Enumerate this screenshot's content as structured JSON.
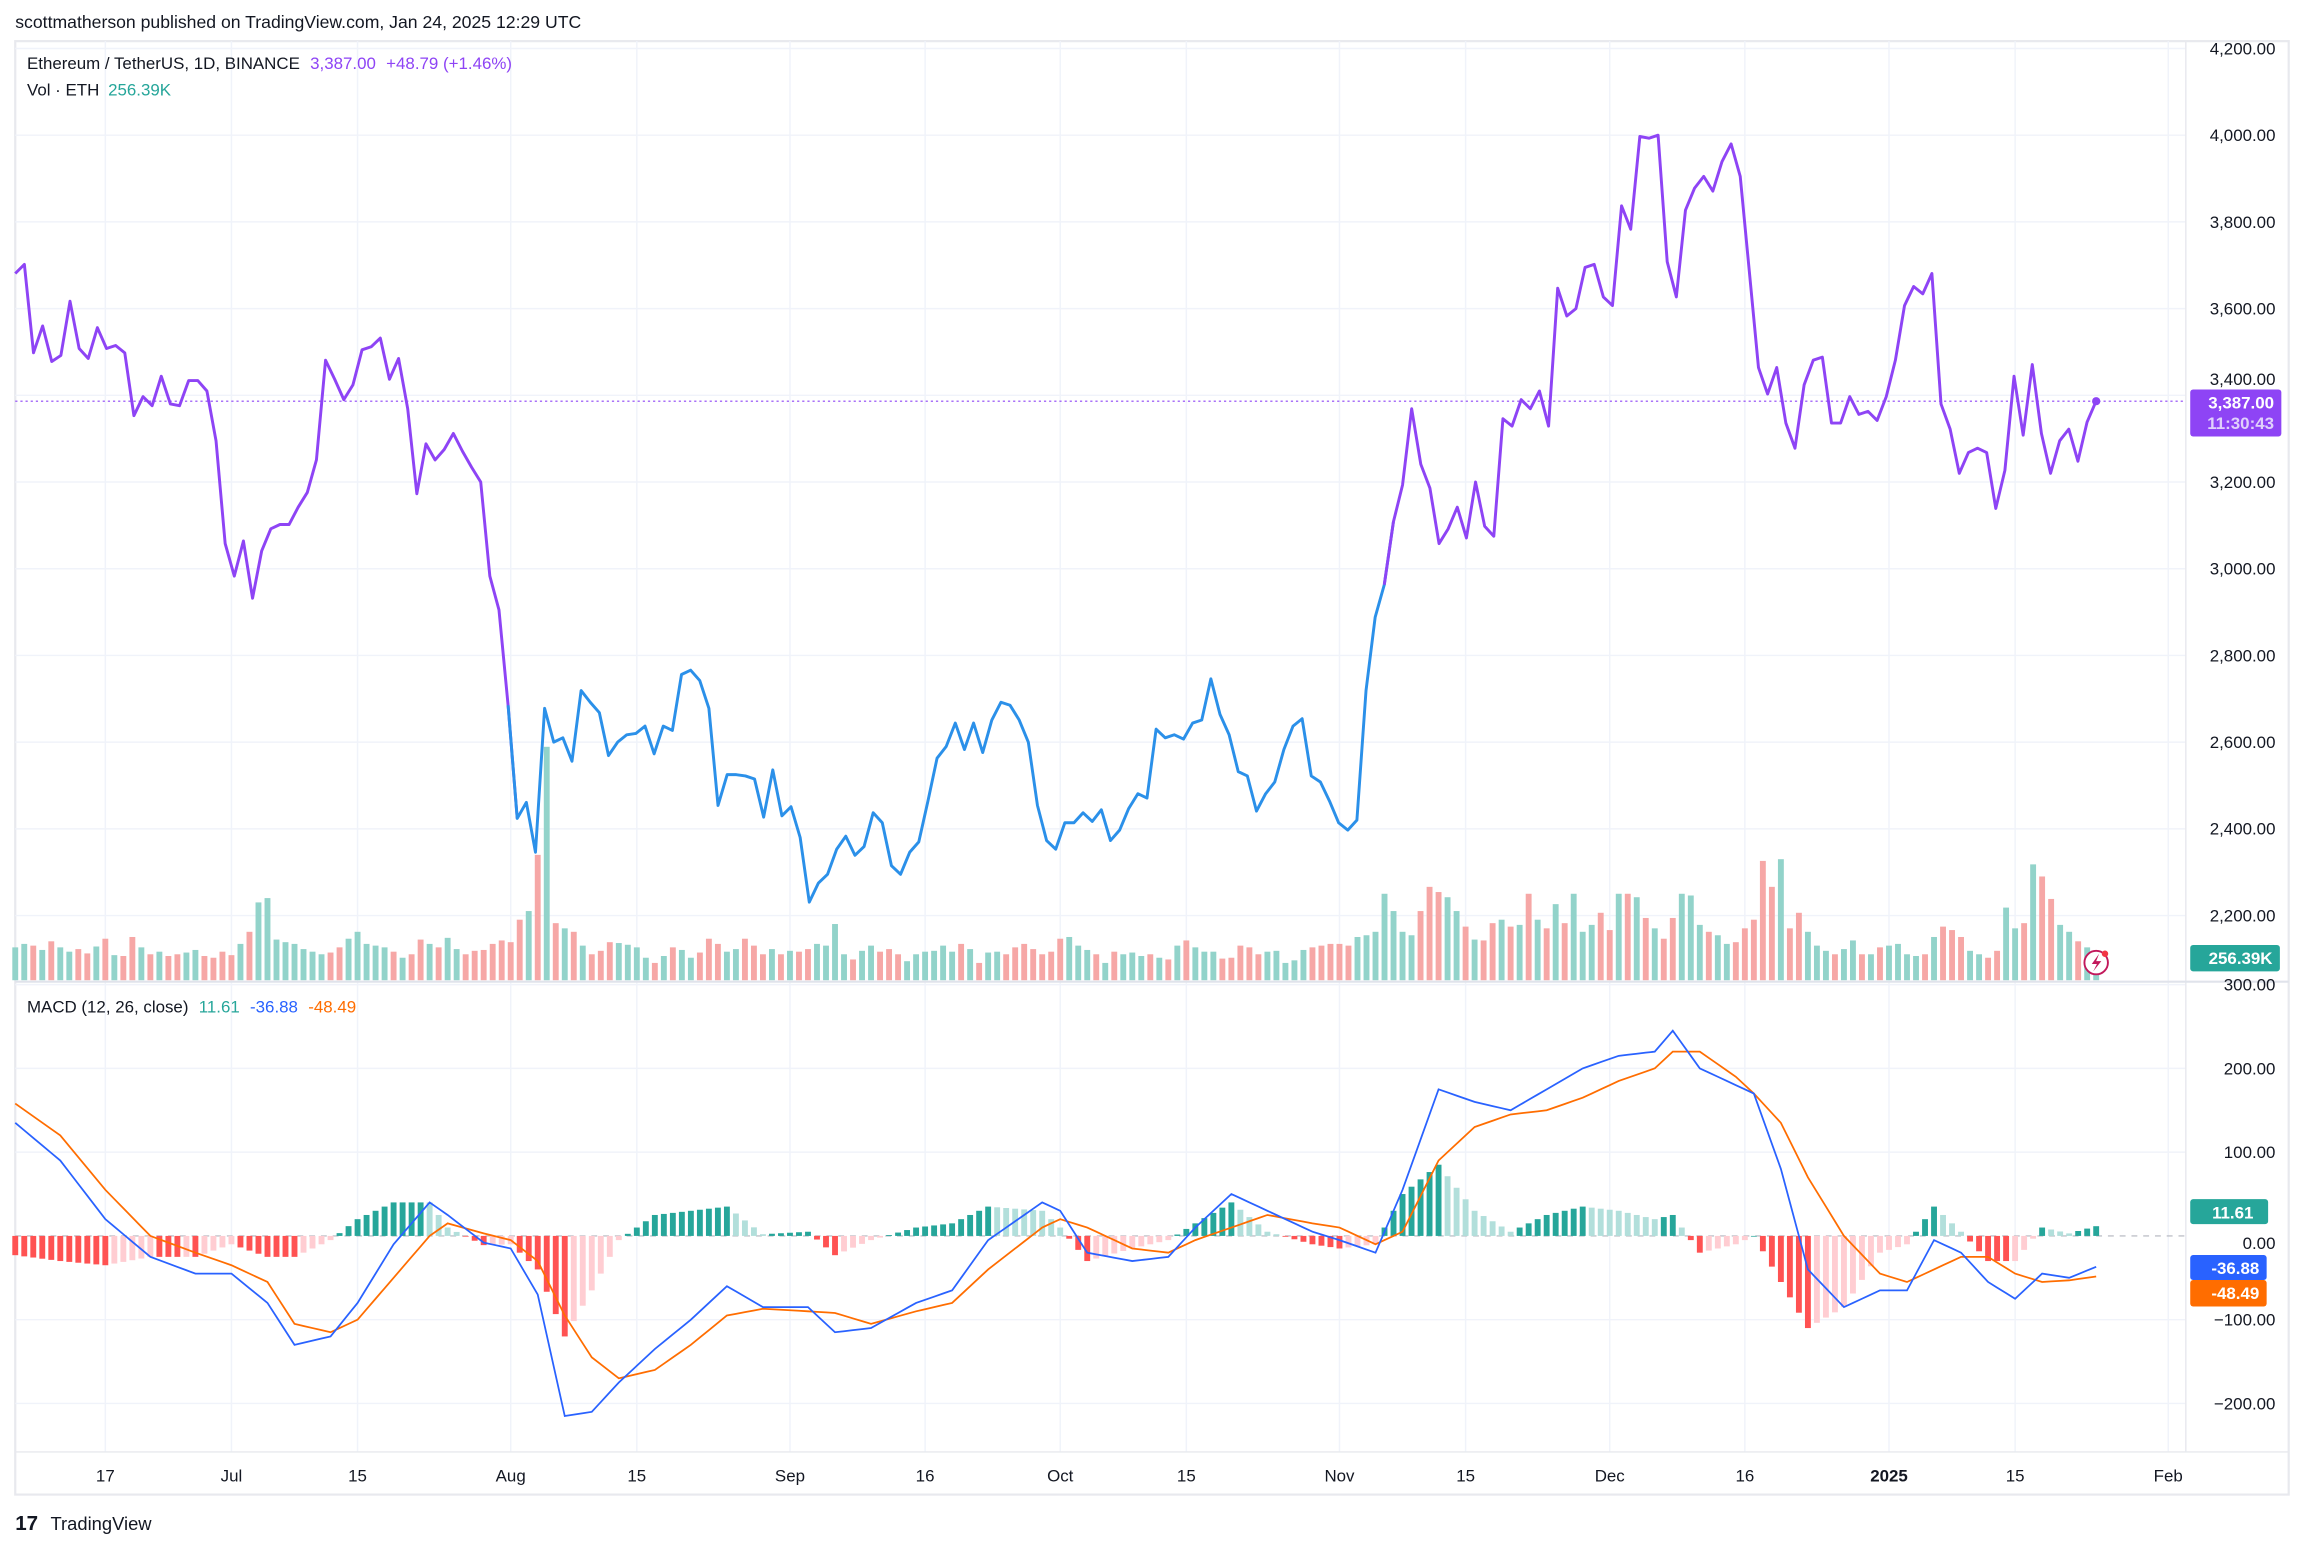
{
  "header": {
    "published": "scottmatherson published on TradingView.com, Jan 24, 2025 12:29 UTC"
  },
  "legend": {
    "symbol": "Ethereum / TetherUS, 1D, BINANCE",
    "price": "3,387.00",
    "change": "+48.79 (+1.46%)",
    "vol_label": "Vol · ETH",
    "vol_value": "256.39K"
  },
  "macd_legend": {
    "title": "MACD (12, 26, close)",
    "hist": "11.61",
    "macd": "-36.88",
    "signal": "-48.49"
  },
  "price_label": {
    "price": "3,387.00",
    "countdown": "11:30:43"
  },
  "volume_label": "256.39K",
  "macd_labels": {
    "hist": "11.61",
    "macd": "-36.88",
    "signal": "-48.49"
  },
  "footer": {
    "logo_text": "TradingView"
  },
  "colors": {
    "price_up_segment": "#8e44f5",
    "price_down_segment": "#2b90e9",
    "volume_up": "#92d3ca",
    "volume_down": "#f6a7a6",
    "macd_line": "#2962ff",
    "signal_line": "#ff6d00",
    "hist_pos_strong": "#26a69a",
    "hist_pos_weak": "#b2dfdb",
    "hist_neg_strong": "#ff5252",
    "hist_neg_weak": "#ffcdd2"
  },
  "chart_data": {
    "type": "line",
    "x_range": [
      "2024-06-07",
      "2025-01-24"
    ],
    "x_ticks": [
      {
        "label": "17",
        "date": "2024-06-17"
      },
      {
        "label": "Jul",
        "date": "2024-07-01"
      },
      {
        "label": "15",
        "date": "2024-07-15"
      },
      {
        "label": "Aug",
        "date": "2024-08-01"
      },
      {
        "label": "15",
        "date": "2024-08-15"
      },
      {
        "label": "Sep",
        "date": "2024-09-01"
      },
      {
        "label": "16",
        "date": "2024-09-16"
      },
      {
        "label": "Oct",
        "date": "2024-10-01"
      },
      {
        "label": "15",
        "date": "2024-10-15"
      },
      {
        "label": "Nov",
        "date": "2024-11-01"
      },
      {
        "label": "15",
        "date": "2024-11-15"
      },
      {
        "label": "Dec",
        "date": "2024-12-01"
      },
      {
        "label": "16",
        "date": "2024-12-16"
      },
      {
        "label": "2025",
        "date": "2025-01-01"
      },
      {
        "label": "15",
        "date": "2025-01-15"
      },
      {
        "label": "Feb",
        "date": "2025-02-01"
      }
    ],
    "price": {
      "y_ticks": [
        {
          "value": 4200,
          "label": "4,200.00"
        },
        {
          "value": 4000,
          "label": "4,000.00"
        },
        {
          "value": 3800,
          "label": "3,800.00"
        },
        {
          "value": 3600,
          "label": "3,600.00"
        },
        {
          "value": 3400,
          "label": "3,400.00"
        },
        {
          "value": 3200,
          "label": "3,200.00"
        },
        {
          "value": 3000,
          "label": "3,000.00"
        },
        {
          "value": 2800,
          "label": "2,800.00"
        },
        {
          "value": 2600,
          "label": "2,600.00"
        },
        {
          "value": 2400,
          "label": "2,400.00"
        },
        {
          "value": 2200,
          "label": "2,200.00"
        }
      ],
      "last": 3387,
      "color_breaks": [
        {
          "from": "2024-06-07",
          "color": "#8e44f5"
        },
        {
          "from": "2024-08-01",
          "color": "#2b90e9"
        },
        {
          "from": "2024-11-06",
          "color": "#8e44f5"
        }
      ],
      "closes": [
        3681,
        3702,
        3498,
        3560,
        3478,
        3492,
        3617,
        3508,
        3485,
        3556,
        3508,
        3515,
        3498,
        3353,
        3397,
        3376,
        3444,
        3380,
        3376,
        3434,
        3434,
        3410,
        3295,
        3058,
        2983,
        3064,
        2932,
        3041,
        3092,
        3102,
        3102,
        3142,
        3176,
        3251,
        3481,
        3437,
        3390,
        3424,
        3505,
        3512,
        3532,
        3437,
        3485,
        3369,
        3173,
        3288,
        3251,
        3275,
        3312,
        3271,
        3234,
        3200,
        2983,
        2905,
        2685,
        2424,
        2461,
        2346,
        2678,
        2600,
        2610,
        2556,
        2719,
        2692,
        2668,
        2569,
        2600,
        2617,
        2620,
        2637,
        2573,
        2637,
        2627,
        2756,
        2766,
        2742,
        2678,
        2454,
        2525,
        2525,
        2522,
        2515,
        2427,
        2536,
        2430,
        2451,
        2380,
        2231,
        2275,
        2295,
        2353,
        2383,
        2339,
        2359,
        2437,
        2414,
        2315,
        2295,
        2346,
        2370,
        2464,
        2563,
        2590,
        2644,
        2583,
        2644,
        2576,
        2651,
        2692,
        2685,
        2651,
        2600,
        2454,
        2373,
        2353,
        2414,
        2414,
        2437,
        2417,
        2444,
        2373,
        2397,
        2447,
        2481,
        2471,
        2630,
        2610,
        2617,
        2607,
        2644,
        2651,
        2746,
        2664,
        2617,
        2532,
        2522,
        2441,
        2481,
        2508,
        2583,
        2637,
        2654,
        2522,
        2508,
        2464,
        2414,
        2397,
        2420,
        2719,
        2888,
        2963,
        3108,
        3193,
        3369,
        3241,
        3186,
        3058,
        3092,
        3142,
        3071,
        3200,
        3098,
        3075,
        3346,
        3329,
        3390,
        3369,
        3410,
        3329,
        3647,
        3583,
        3600,
        3695,
        3702,
        3627,
        3607,
        3837,
        3783,
        3997,
        3993,
        4000,
        3708,
        3627,
        3827,
        3878,
        3905,
        3871,
        3939,
        3980,
        3905,
        3685,
        3464,
        3403,
        3464,
        3336,
        3278,
        3424,
        3481,
        3488,
        3336,
        3336,
        3397,
        3356,
        3363,
        3342,
        3397,
        3481,
        3607,
        3651,
        3634,
        3681,
        3380,
        3322,
        3220,
        3268,
        3278,
        3268,
        3139,
        3227,
        3444,
        3308,
        3471,
        3312,
        3220,
        3295,
        3322,
        3248,
        3338,
        3387
      ]
    },
    "volume": {
      "unit": "K",
      "values": [
        380,
        420,
        400,
        350,
        450,
        380,
        330,
        360,
        310,
        390,
        480,
        290,
        280,
        500,
        380,
        300,
        330,
        280,
        300,
        320,
        350,
        280,
        260,
        330,
        290,
        420,
        560,
        900,
        950,
        470,
        440,
        420,
        360,
        330,
        300,
        320,
        380,
        480,
        560,
        420,
        400,
        380,
        330,
        260,
        300,
        470,
        420,
        380,
        490,
        360,
        300,
        340,
        350,
        420,
        460,
        440,
        700,
        800,
        1450,
        2700,
        660,
        600,
        560,
        400,
        300,
        340,
        440,
        430,
        410,
        380,
        260,
        200,
        280,
        380,
        350,
        260,
        320,
        480,
        420,
        330,
        360,
        480,
        400,
        300,
        360,
        300,
        340,
        330,
        360,
        420,
        400,
        650,
        300,
        240,
        340,
        400,
        330,
        360,
        300,
        220,
        300,
        330,
        340,
        400,
        330,
        420,
        360,
        200,
        320,
        330,
        300,
        380,
        420,
        360,
        300,
        330,
        480,
        500,
        400,
        350,
        300,
        200,
        330,
        300,
        320,
        280,
        300,
        260,
        240,
        400,
        460,
        380,
        330,
        330,
        250,
        260,
        400,
        380,
        300,
        330,
        340,
        200,
        230,
        350,
        380,
        400,
        420,
        420,
        400,
        500,
        520,
        560,
        1000,
        800,
        560,
        520,
        800,
        1080,
        1020,
        960,
        800,
        620,
        470,
        460,
        660,
        700,
        620,
        640,
        1000,
        700,
        600,
        880,
        660,
        1000,
        560,
        640,
        780,
        580,
        1000,
        1000,
        960,
        720,
        600,
        480,
        720,
        1000,
        980,
        640,
        560,
        520,
        420,
        440,
        600,
        700,
        1380,
        1080,
        1400,
        600,
        780,
        560,
        400,
        340,
        300,
        360,
        460,
        300,
        300,
        380,
        400,
        420,
        300,
        280,
        300,
        500,
        620,
        580,
        500,
        340,
        300,
        260,
        340,
        840,
        600,
        660,
        1340,
        1200,
        940,
        640,
        560,
        450,
        380,
        256.39
      ]
    },
    "macd": {
      "params": "12, 26, close",
      "y_ticks": [
        {
          "value": 300,
          "label": "300.00"
        },
        {
          "value": 200,
          "label": "200.00"
        },
        {
          "value": 100,
          "label": "100.00"
        },
        {
          "value": 0,
          "label": "0.00"
        },
        {
          "value": -100,
          "label": "−100.00"
        },
        {
          "value": -200,
          "label": "−200.00"
        }
      ],
      "samples_date_macd_signal": [
        [
          "2024-06-07",
          135,
          158
        ],
        [
          "2024-06-12",
          90,
          120
        ],
        [
          "2024-06-17",
          20,
          55
        ],
        [
          "2024-06-22",
          -25,
          0
        ],
        [
          "2024-06-27",
          -45,
          -20
        ],
        [
          "2024-07-01",
          -45,
          -35
        ],
        [
          "2024-07-05",
          -80,
          -55
        ],
        [
          "2024-07-08",
          -130,
          -105
        ],
        [
          "2024-07-12",
          -120,
          -115
        ],
        [
          "2024-07-15",
          -80,
          -100
        ],
        [
          "2024-07-19",
          -10,
          -50
        ],
        [
          "2024-07-23",
          40,
          0
        ],
        [
          "2024-07-25",
          25,
          15
        ],
        [
          "2024-07-29",
          -8,
          3
        ],
        [
          "2024-08-01",
          -15,
          -5
        ],
        [
          "2024-08-04",
          -70,
          -30
        ],
        [
          "2024-08-07",
          -215,
          -95
        ],
        [
          "2024-08-10",
          -210,
          -145
        ],
        [
          "2024-08-13",
          -175,
          -170
        ],
        [
          "2024-08-17",
          -135,
          -160
        ],
        [
          "2024-08-21",
          -100,
          -130
        ],
        [
          "2024-08-25",
          -60,
          -95
        ],
        [
          "2024-08-29",
          -85,
          -87
        ],
        [
          "2024-09-03",
          -85,
          -90
        ],
        [
          "2024-09-06",
          -115,
          -92
        ],
        [
          "2024-09-10",
          -110,
          -105
        ],
        [
          "2024-09-15",
          -80,
          -90
        ],
        [
          "2024-09-19",
          -65,
          -80
        ],
        [
          "2024-09-23",
          -5,
          -40
        ],
        [
          "2024-09-29",
          40,
          10
        ],
        [
          "2024-10-01",
          30,
          20
        ],
        [
          "2024-10-04",
          -20,
          10
        ],
        [
          "2024-10-09",
          -30,
          -15
        ],
        [
          "2024-10-13",
          -25,
          -20
        ],
        [
          "2024-10-16",
          10,
          -5
        ],
        [
          "2024-10-20",
          50,
          10
        ],
        [
          "2024-10-24",
          30,
          25
        ],
        [
          "2024-10-29",
          5,
          15
        ],
        [
          "2024-11-01",
          -5,
          10
        ],
        [
          "2024-11-05",
          -20,
          -10
        ],
        [
          "2024-11-08",
          55,
          5
        ],
        [
          "2024-11-12",
          175,
          90
        ],
        [
          "2024-11-16",
          160,
          130
        ],
        [
          "2024-11-20",
          150,
          145
        ],
        [
          "2024-11-24",
          175,
          150
        ],
        [
          "2024-11-28",
          200,
          165
        ],
        [
          "2024-12-02",
          215,
          185
        ],
        [
          "2024-12-06",
          220,
          200
        ],
        [
          "2024-12-08",
          245,
          220
        ],
        [
          "2024-12-11",
          200,
          220
        ],
        [
          "2024-12-15",
          180,
          190
        ],
        [
          "2024-12-17",
          170,
          170
        ],
        [
          "2024-12-20",
          80,
          135
        ],
        [
          "2024-12-23",
          -40,
          70
        ],
        [
          "2024-12-27",
          -85,
          0
        ],
        [
          "2024-12-31",
          -65,
          -45
        ],
        [
          "2025-01-03",
          -65,
          -55
        ],
        [
          "2025-01-06",
          -5,
          -40
        ],
        [
          "2025-01-09",
          -20,
          -25
        ],
        [
          "2025-01-12",
          -55,
          -25
        ],
        [
          "2025-01-15",
          -75,
          -45
        ],
        [
          "2025-01-18",
          -45,
          -55
        ],
        [
          "2025-01-21",
          -50,
          -53
        ],
        [
          "2025-01-24",
          -36.88,
          -48.49
        ]
      ]
    }
  }
}
